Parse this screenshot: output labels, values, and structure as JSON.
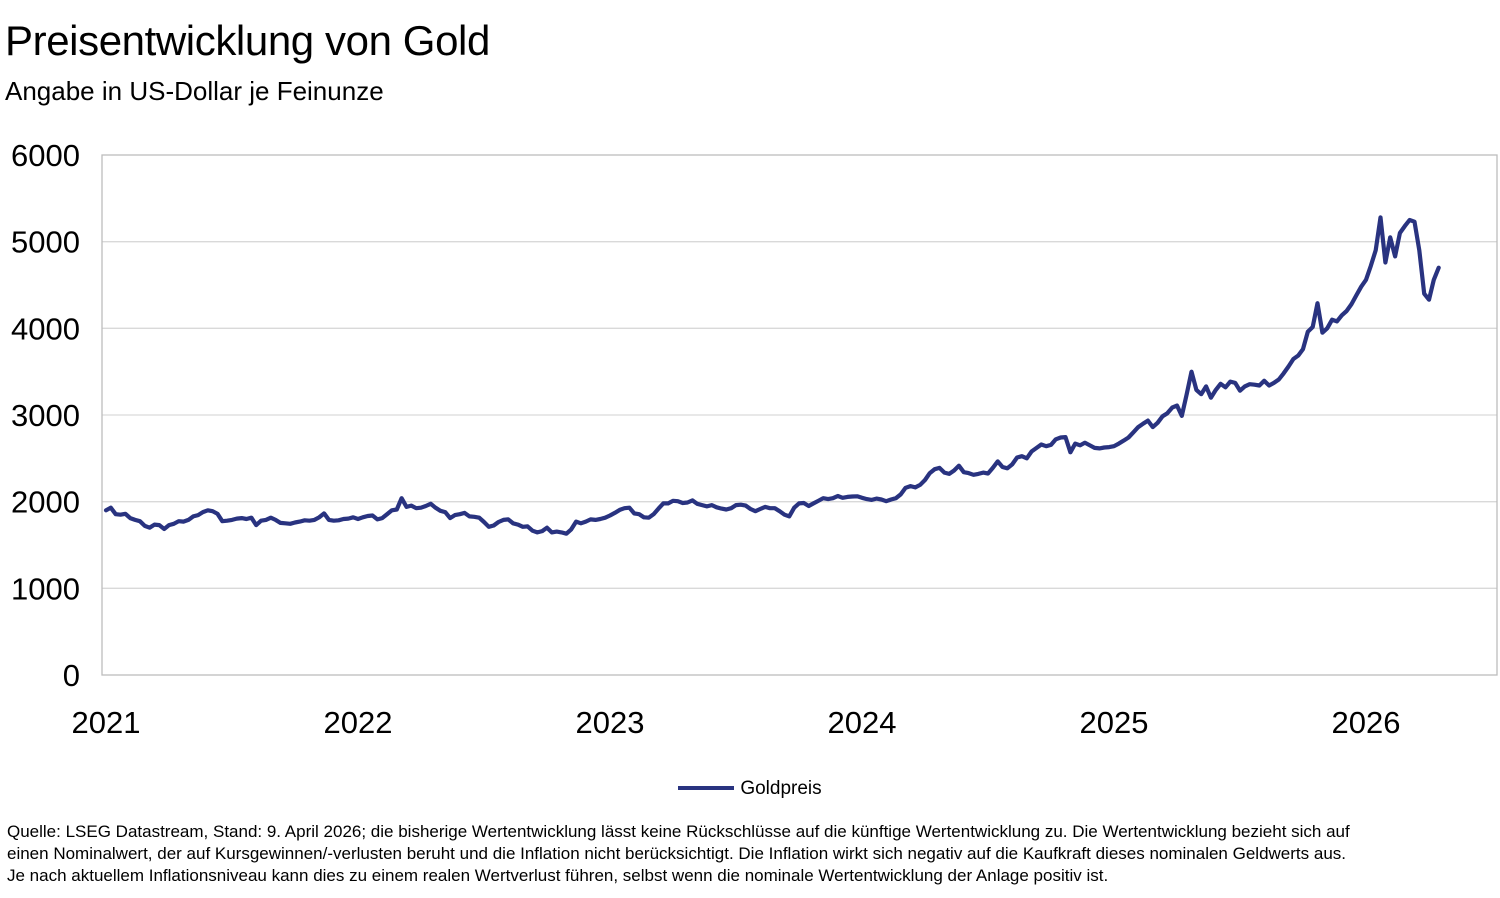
{
  "header": {
    "title": "Preisentwicklung von Gold",
    "subtitle": "Angabe in US-Dollar je Feinunze"
  },
  "colors": {
    "line": "#293380",
    "grid": "#d9d9d9",
    "frame": "#bdbdbd",
    "text": "#000000",
    "background": "#ffffff"
  },
  "chart_data": {
    "type": "line",
    "title": "Preisentwicklung von Gold",
    "subtitle": "Angabe in US-Dollar je Feinunze",
    "unit": "US-Dollar je Feinunze",
    "x_tick_labels": [
      "2021",
      "2022",
      "2023",
      "2024",
      "2025",
      "2026"
    ],
    "x_start_year": 2021,
    "points_per_year": 52,
    "sampling": "weekly-estimate",
    "ylim": [
      0,
      6000
    ],
    "yticks": [
      0,
      1000,
      2000,
      3000,
      4000,
      5000,
      6000
    ],
    "grid": "horizontal",
    "legend_position": "bottom-center",
    "series": [
      {
        "name": "Goldpreis",
        "color": "#293380",
        "values": [
          1900,
          1930,
          1855,
          1850,
          1860,
          1810,
          1790,
          1775,
          1720,
          1700,
          1735,
          1730,
          1685,
          1730,
          1745,
          1775,
          1770,
          1790,
          1830,
          1845,
          1880,
          1900,
          1890,
          1860,
          1775,
          1780,
          1790,
          1805,
          1810,
          1800,
          1815,
          1730,
          1780,
          1790,
          1815,
          1790,
          1755,
          1750,
          1745,
          1760,
          1770,
          1785,
          1780,
          1790,
          1820,
          1865,
          1790,
          1780,
          1785,
          1800,
          1805,
          1820,
          1800,
          1820,
          1835,
          1840,
          1795,
          1810,
          1855,
          1900,
          1910,
          2040,
          1940,
          1955,
          1925,
          1930,
          1950,
          1975,
          1930,
          1895,
          1880,
          1810,
          1845,
          1855,
          1870,
          1830,
          1825,
          1815,
          1765,
          1710,
          1725,
          1765,
          1790,
          1795,
          1750,
          1735,
          1710,
          1715,
          1665,
          1645,
          1660,
          1700,
          1645,
          1655,
          1645,
          1630,
          1680,
          1770,
          1750,
          1770,
          1795,
          1790,
          1800,
          1815,
          1840,
          1870,
          1905,
          1925,
          1930,
          1865,
          1855,
          1820,
          1815,
          1855,
          1920,
          1980,
          1980,
          2010,
          2005,
          1985,
          1990,
          2015,
          1975,
          1960,
          1945,
          1960,
          1935,
          1920,
          1910,
          1925,
          1960,
          1965,
          1955,
          1915,
          1890,
          1915,
          1940,
          1925,
          1925,
          1890,
          1850,
          1830,
          1930,
          1980,
          1985,
          1950,
          1980,
          2010,
          2040,
          2030,
          2040,
          2065,
          2045,
          2055,
          2060,
          2062,
          2045,
          2030,
          2020,
          2035,
          2025,
          2005,
          2025,
          2040,
          2085,
          2160,
          2180,
          2165,
          2195,
          2250,
          2330,
          2375,
          2390,
          2335,
          2320,
          2360,
          2415,
          2340,
          2330,
          2310,
          2320,
          2335,
          2325,
          2390,
          2465,
          2400,
          2385,
          2430,
          2510,
          2525,
          2500,
          2580,
          2620,
          2660,
          2640,
          2655,
          2720,
          2740,
          2745,
          2570,
          2670,
          2650,
          2680,
          2650,
          2620,
          2615,
          2625,
          2630,
          2640,
          2670,
          2705,
          2740,
          2800,
          2860,
          2900,
          2935,
          2860,
          2910,
          2985,
          3020,
          3085,
          3110,
          2990,
          3240,
          3500,
          3290,
          3240,
          3330,
          3200,
          3290,
          3360,
          3320,
          3385,
          3370,
          3280,
          3330,
          3355,
          3350,
          3340,
          3395,
          3340,
          3370,
          3410,
          3480,
          3560,
          3645,
          3685,
          3760,
          3960,
          4015,
          4290,
          3950,
          4000,
          4100,
          4080,
          4150,
          4200,
          4280,
          4380,
          4480,
          4560,
          4720,
          4900,
          5280,
          4760,
          5050,
          4830,
          5100,
          5180,
          5250,
          5230,
          4900,
          4400,
          4330,
          4560,
          4700
        ]
      }
    ]
  },
  "legend": {
    "label": "Goldpreis"
  },
  "footer": {
    "lines": [
      "Quelle: LSEG Datastream, Stand: 9. April 2026; die bisherige Wertentwicklung lässt keine Rückschlüsse auf die künftige Wertentwicklung zu. Die Wertentwicklung bezieht sich auf",
      "einen Nominalwert, der auf Kursgewinnen/-verlusten beruht und die Inflation nicht berücksichtigt. Die Inflation wirkt sich negativ auf die Kaufkraft dieses nominalen Geldwerts aus.",
      "Je nach aktuellem Inflationsniveau kann dies zu einem realen Wertverlust führen, selbst wenn die nominale Wertentwicklung der Anlage positiv ist."
    ]
  }
}
